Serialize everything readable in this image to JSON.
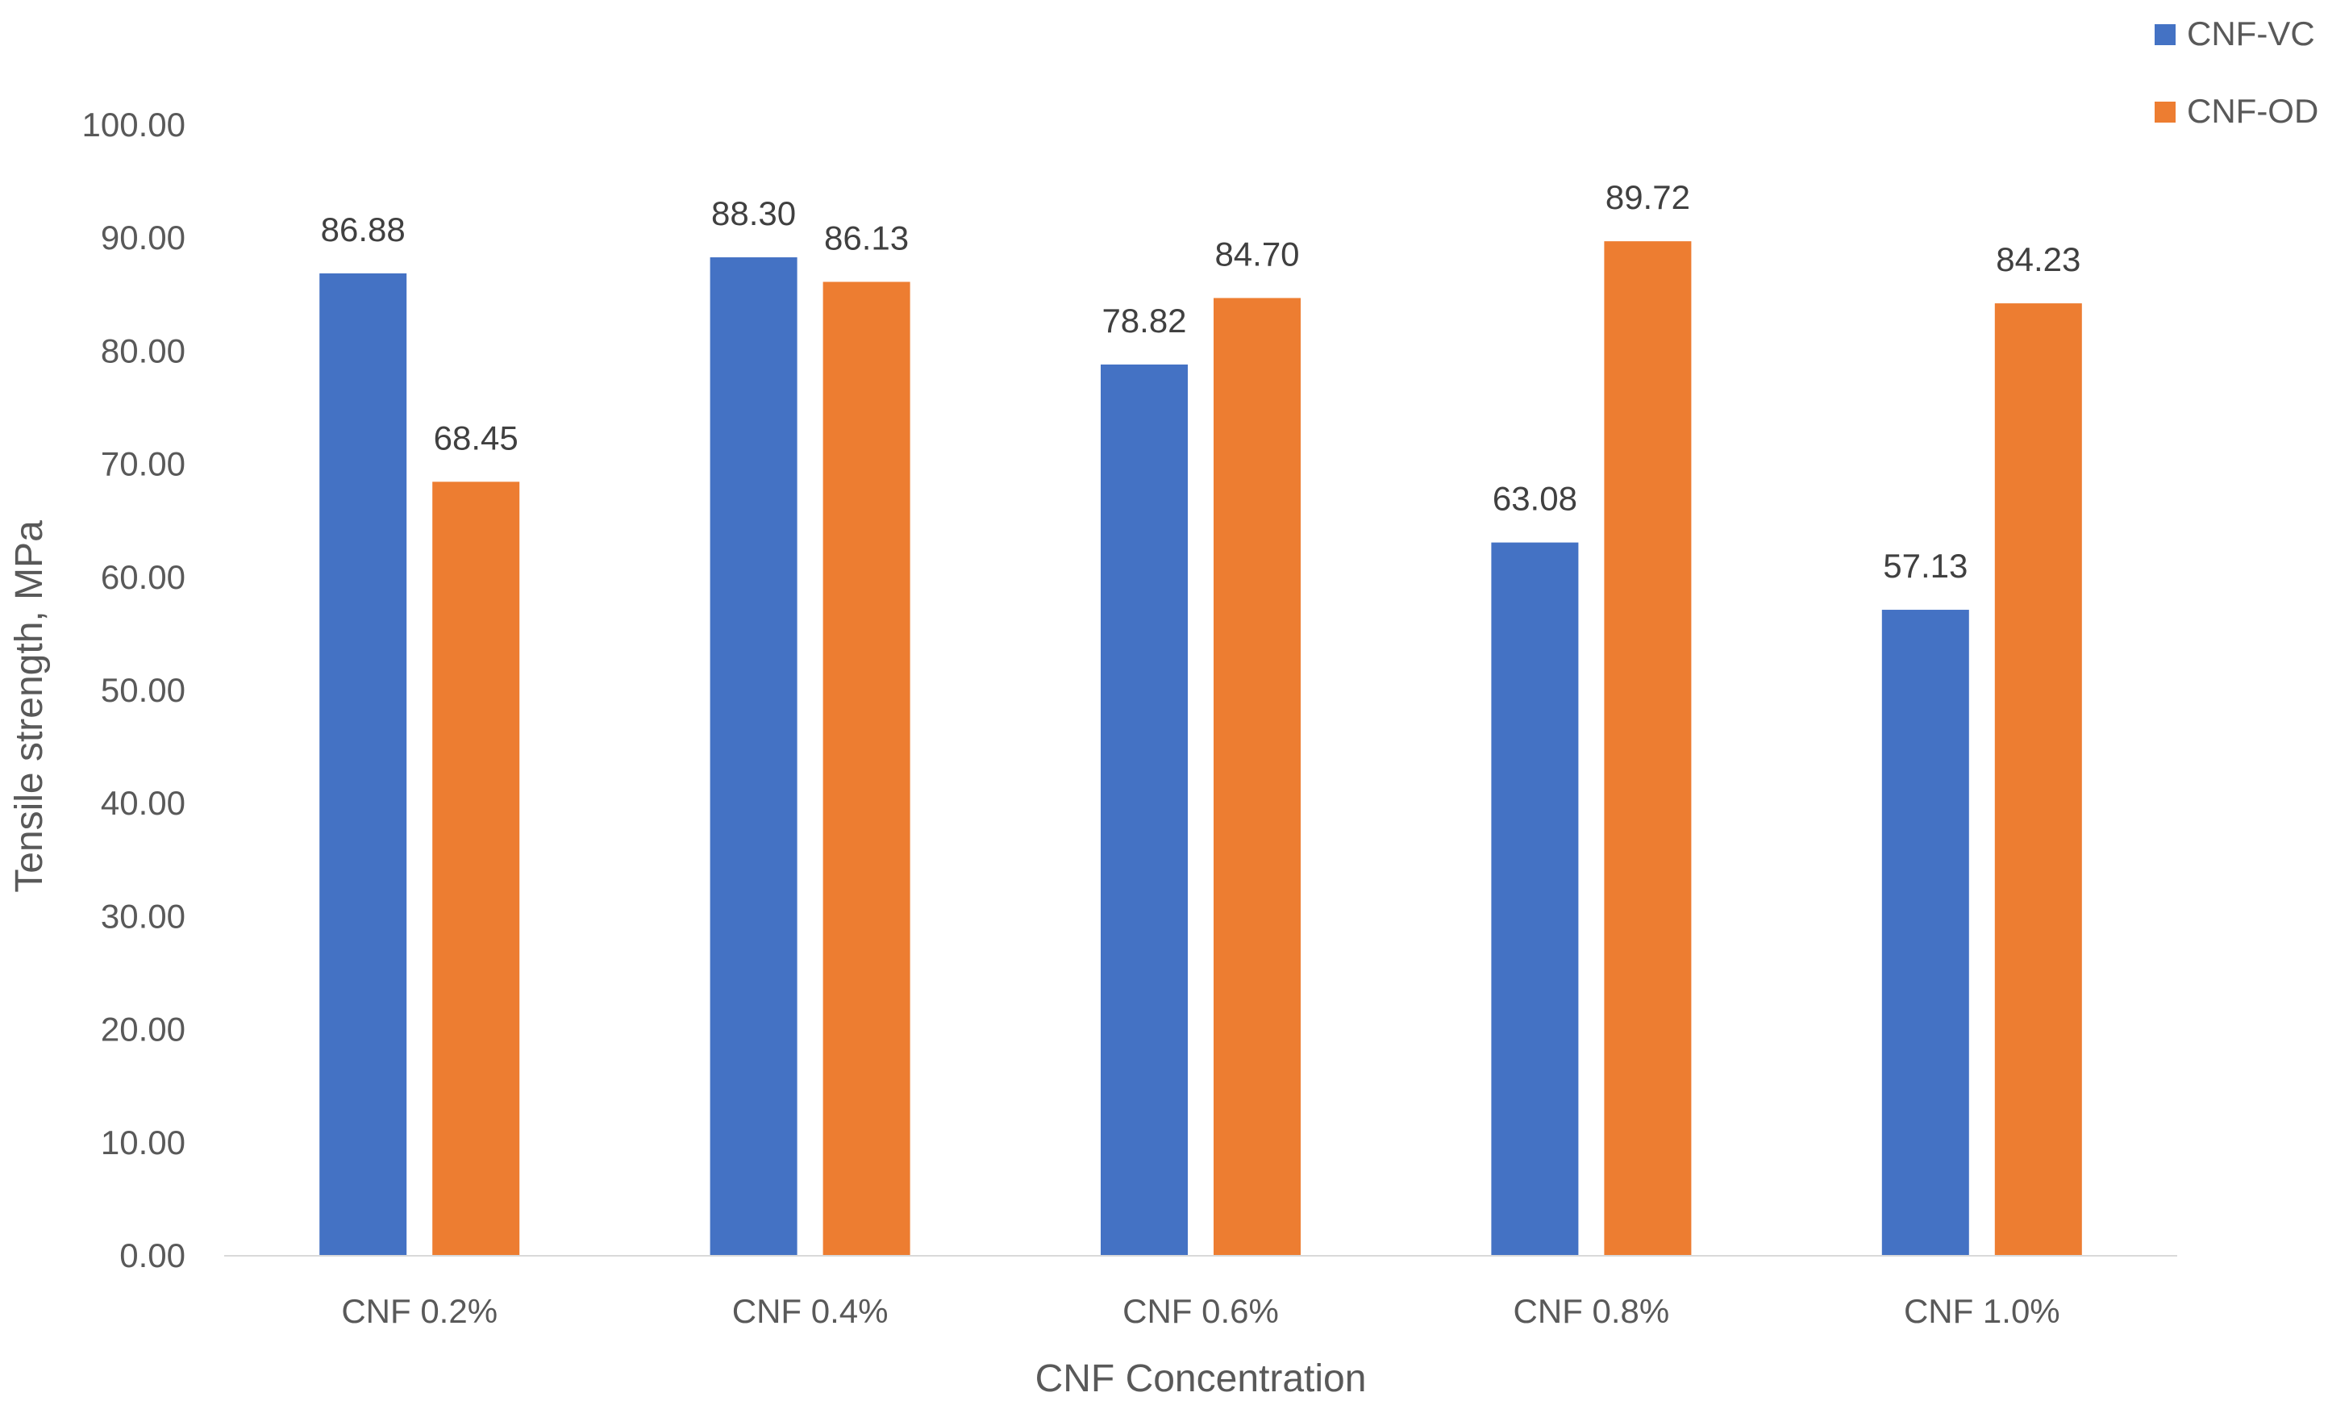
{
  "chart_data": {
    "type": "bar",
    "title": "",
    "xlabel": "CNF Concentration",
    "ylabel": "Tensile strength, MPa",
    "categories": [
      "CNF 0.2%",
      "CNF 0.4%",
      "CNF 0.6%",
      "CNF 0.8%",
      "CNF 1.0%"
    ],
    "series": [
      {
        "name": "CNF-VC",
        "color": "#4472C4",
        "values": [
          86.88,
          88.3,
          78.82,
          63.08,
          57.13
        ],
        "labels": [
          "86.88",
          "88.30",
          "78.82",
          "63.08",
          "57.13"
        ]
      },
      {
        "name": "CNF-OD",
        "color": "#ED7D31",
        "values": [
          68.45,
          86.13,
          84.7,
          89.72,
          84.23
        ],
        "labels": [
          "68.45",
          "86.13",
          "84.70",
          "89.72",
          "84.23"
        ]
      }
    ],
    "ylim": [
      0,
      100
    ],
    "yticks": [
      "0.00",
      "10.00",
      "20.00",
      "30.00",
      "40.00",
      "50.00",
      "60.00",
      "70.00",
      "80.00",
      "90.00",
      "100.00"
    ],
    "grid": false,
    "legend": "top-right",
    "axis_line_color": "#D9D9D9"
  }
}
